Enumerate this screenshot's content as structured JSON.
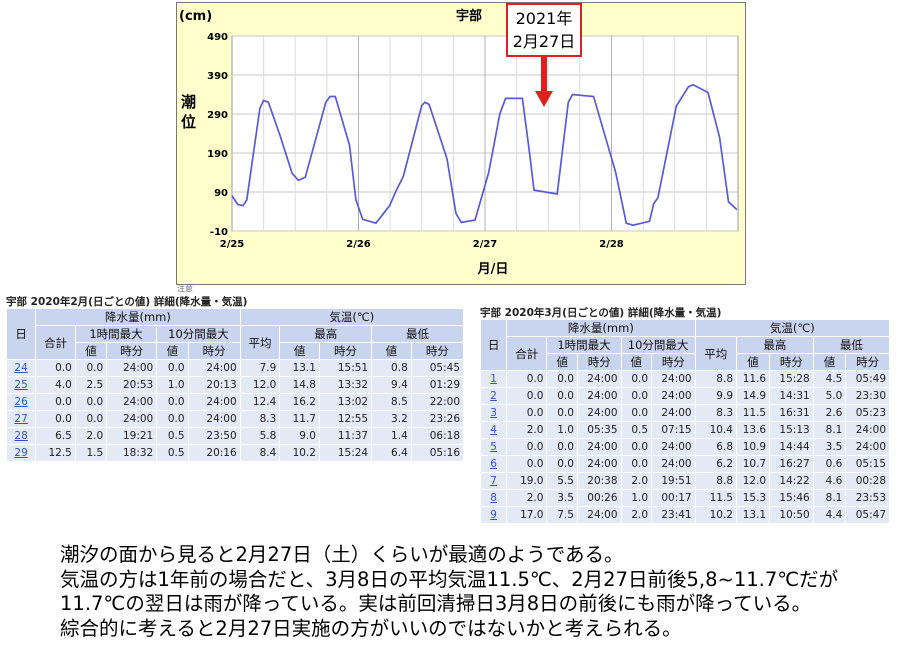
{
  "chart_data": {
    "type": "line",
    "title": "宇部",
    "unit": "(cm)",
    "ylabel": "潮\n位",
    "xlabel": "月/日",
    "yticks": [
      "490",
      "390",
      "290",
      "190",
      "90",
      "-10"
    ],
    "ylim": [
      -10,
      490
    ],
    "xticks": [
      "2/25",
      "2/26",
      "2/27",
      "2/28"
    ],
    "grid": true,
    "series": [
      {
        "x": [
          0,
          1.1,
          2.1,
          2.8,
          5.3,
          6.0,
          6.9,
          9.1,
          11.4,
          12.6,
          13.9,
          17.8,
          18.6,
          19.6,
          22.3,
          23.5,
          24.8,
          27.3,
          29.9,
          31.1,
          32.5,
          36.0,
          36.6,
          37.4,
          40.8,
          42.5,
          43.5,
          46.1,
          48.7,
          50.8,
          51.9,
          55.1,
          56.5,
          57.3,
          61.7,
          63.8,
          64.6,
          68.6,
          72.8,
          74.8,
          76.1,
          79.2,
          80.0,
          80.8,
          84.3,
          86.6,
          87.5,
          90.3,
          92.5,
          94.2,
          95.8
        ],
        "values": [
          80,
          58,
          55,
          70,
          305,
          325,
          320,
          235,
          138,
          120,
          128,
          320,
          335,
          335,
          210,
          70,
          20,
          10,
          55,
          92,
          130,
          312,
          320,
          315,
          175,
          35,
          12,
          18,
          140,
          290,
          330,
          330,
          185,
          95,
          85,
          320,
          340,
          335,
          140,
          10,
          5,
          15,
          60,
          75,
          310,
          360,
          365,
          345,
          230,
          65,
          45
        ]
      }
    ],
    "callout": "2021年\n2月27日"
  },
  "table_feb": {
    "caption": "宇部 2020年2月(日ごとの値) 詳細(降水量・気温)",
    "h_day": "日",
    "h_precip": "降水量(mm)",
    "h_temp": "気温(℃)",
    "h_total": "合計",
    "h_max1h": "1時間最大",
    "h_max10m": "10分間最大",
    "h_avg": "平均",
    "h_high": "最高",
    "h_low": "最低",
    "h_val": "値",
    "h_time": "時分",
    "rows": [
      [
        "24",
        "0.0",
        "0.0",
        "24:00",
        "0.0",
        "24:00",
        "7.9",
        "13.1",
        "15:51",
        "0.8",
        "05:45"
      ],
      [
        "25",
        "4.0",
        "2.5",
        "20:53",
        "1.0",
        "20:13",
        "12.0",
        "14.8",
        "13:32",
        "9.4",
        "01:29"
      ],
      [
        "26",
        "0.0",
        "0.0",
        "24:00",
        "0.0",
        "24:00",
        "12.4",
        "16.2",
        "13:02",
        "8.5",
        "22:00"
      ],
      [
        "27",
        "0.0",
        "0.0",
        "24:00",
        "0.0",
        "24:00",
        "8.3",
        "11.7",
        "12:55",
        "3.2",
        "23:26"
      ],
      [
        "28",
        "6.5",
        "2.0",
        "19:21",
        "0.5",
        "23:50",
        "5.8",
        "9.0",
        "11:37",
        "1.4",
        "06:18"
      ],
      [
        "29",
        "12.5",
        "1.5",
        "18:32",
        "0.5",
        "20:16",
        "8.4",
        "10.2",
        "15:24",
        "6.4",
        "05:16"
      ]
    ]
  },
  "table_mar": {
    "caption": "宇部 2020年3月(日ごとの値) 詳細(降水量・気温)",
    "h_day": "日",
    "h_precip": "降水量(mm)",
    "h_temp": "気温(℃)",
    "h_total": "合計",
    "h_max1h": "1時間最大",
    "h_max10m": "10分間最大",
    "h_avg": "平均",
    "h_high": "最高",
    "h_low": "最低",
    "h_val": "値",
    "h_time": "時分",
    "rows": [
      [
        "1",
        "0.0",
        "0.0",
        "24:00",
        "0.0",
        "24:00",
        "8.8",
        "11.6",
        "15:28",
        "4.5",
        "05:49"
      ],
      [
        "2",
        "0.0",
        "0.0",
        "24:00",
        "0.0",
        "24:00",
        "9.9",
        "14.9",
        "14:31",
        "5.0",
        "23:30"
      ],
      [
        "3",
        "0.0",
        "0.0",
        "24:00",
        "0.0",
        "24:00",
        "8.3",
        "11.5",
        "16:31",
        "2.6",
        "05:23"
      ],
      [
        "4",
        "2.0",
        "1.0",
        "05:35",
        "0.5",
        "07:15",
        "10.4",
        "13.6",
        "15:13",
        "8.1",
        "24:00"
      ],
      [
        "5",
        "0.0",
        "0.0",
        "24:00",
        "0.0",
        "24:00",
        "6.8",
        "10.9",
        "14:44",
        "3.5",
        "24:00"
      ],
      [
        "6",
        "0.0",
        "0.0",
        "24:00",
        "0.0",
        "24:00",
        "6.2",
        "10.7",
        "16:27",
        "0.6",
        "05:15"
      ],
      [
        "7",
        "19.0",
        "5.5",
        "20:38",
        "2.0",
        "19:51",
        "8.8",
        "12.0",
        "14:22",
        "4.6",
        "00:28"
      ],
      [
        "8",
        "2.0",
        "3.5",
        "00:26",
        "1.0",
        "00:17",
        "11.5",
        "15.3",
        "15:46",
        "8.1",
        "23:53"
      ],
      [
        "9",
        "17.0",
        "7.5",
        "24:00",
        "2.0",
        "23:41",
        "10.2",
        "13.1",
        "10:50",
        "4.4",
        "05:47"
      ]
    ]
  },
  "body": {
    "line1": "潮汐の面から見ると2月27日（土）くらいが最適のようである。",
    "line2": "気温の方は1年前の場合だと、3月8日の平均気温11.5℃、2月27日前後5,8~11.7℃だが",
    "line3": "11.7℃の翌日は雨が降っている。実は前回清掃日3月8日の前後にも雨が降っている。",
    "line4": "綜合的に考えると2月27日実施の方がいいのではないかと考えられる。"
  },
  "cut_text": "注意"
}
